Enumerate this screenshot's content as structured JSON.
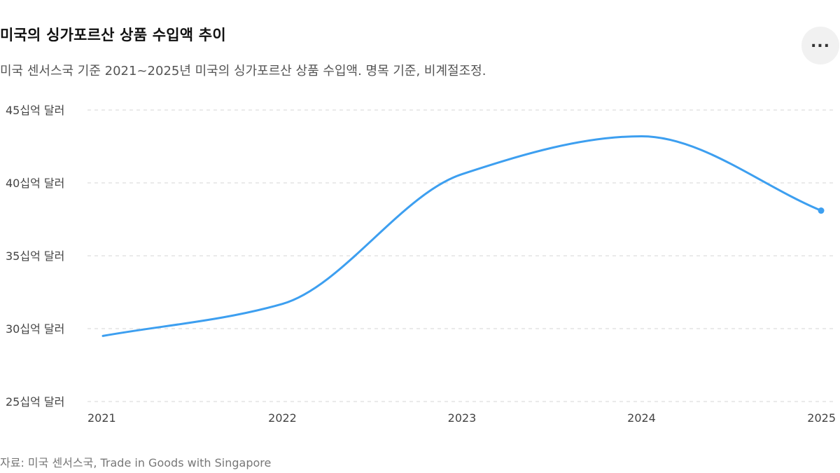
{
  "header": {
    "title": "미국의 싱가포르산 상품 수입액 추이",
    "subtitle": "미국 센서스국 기준 2021~2025년 미국의 싱가포르산 상품 수입액. 명목 기준, 비계절조정.",
    "more_label": "..."
  },
  "footer": {
    "source": "자료: 미국 센서스국, Trade in Goods with Singapore"
  },
  "colors": {
    "line": "#3d9ff0",
    "grid": "#dddddd"
  },
  "chart_data": {
    "type": "line",
    "title": "미국의 싱가포르산 상품 수입액 추이",
    "x": [
      "2021",
      "2022",
      "2023",
      "2024",
      "2025"
    ],
    "series": [
      {
        "values": [
          29.5,
          31.7,
          40.6,
          43.2,
          38.1
        ]
      }
    ],
    "ylim": [
      25,
      45
    ],
    "yticks": [
      25,
      30,
      35,
      40,
      45
    ],
    "ytick_labels": [
      "25십억 달러",
      "30십억 달러",
      "35십억 달러",
      "40십억 달러",
      "45십억 달러"
    ],
    "grid": "horizontal dashed",
    "smooth": true,
    "end_marker": true
  }
}
